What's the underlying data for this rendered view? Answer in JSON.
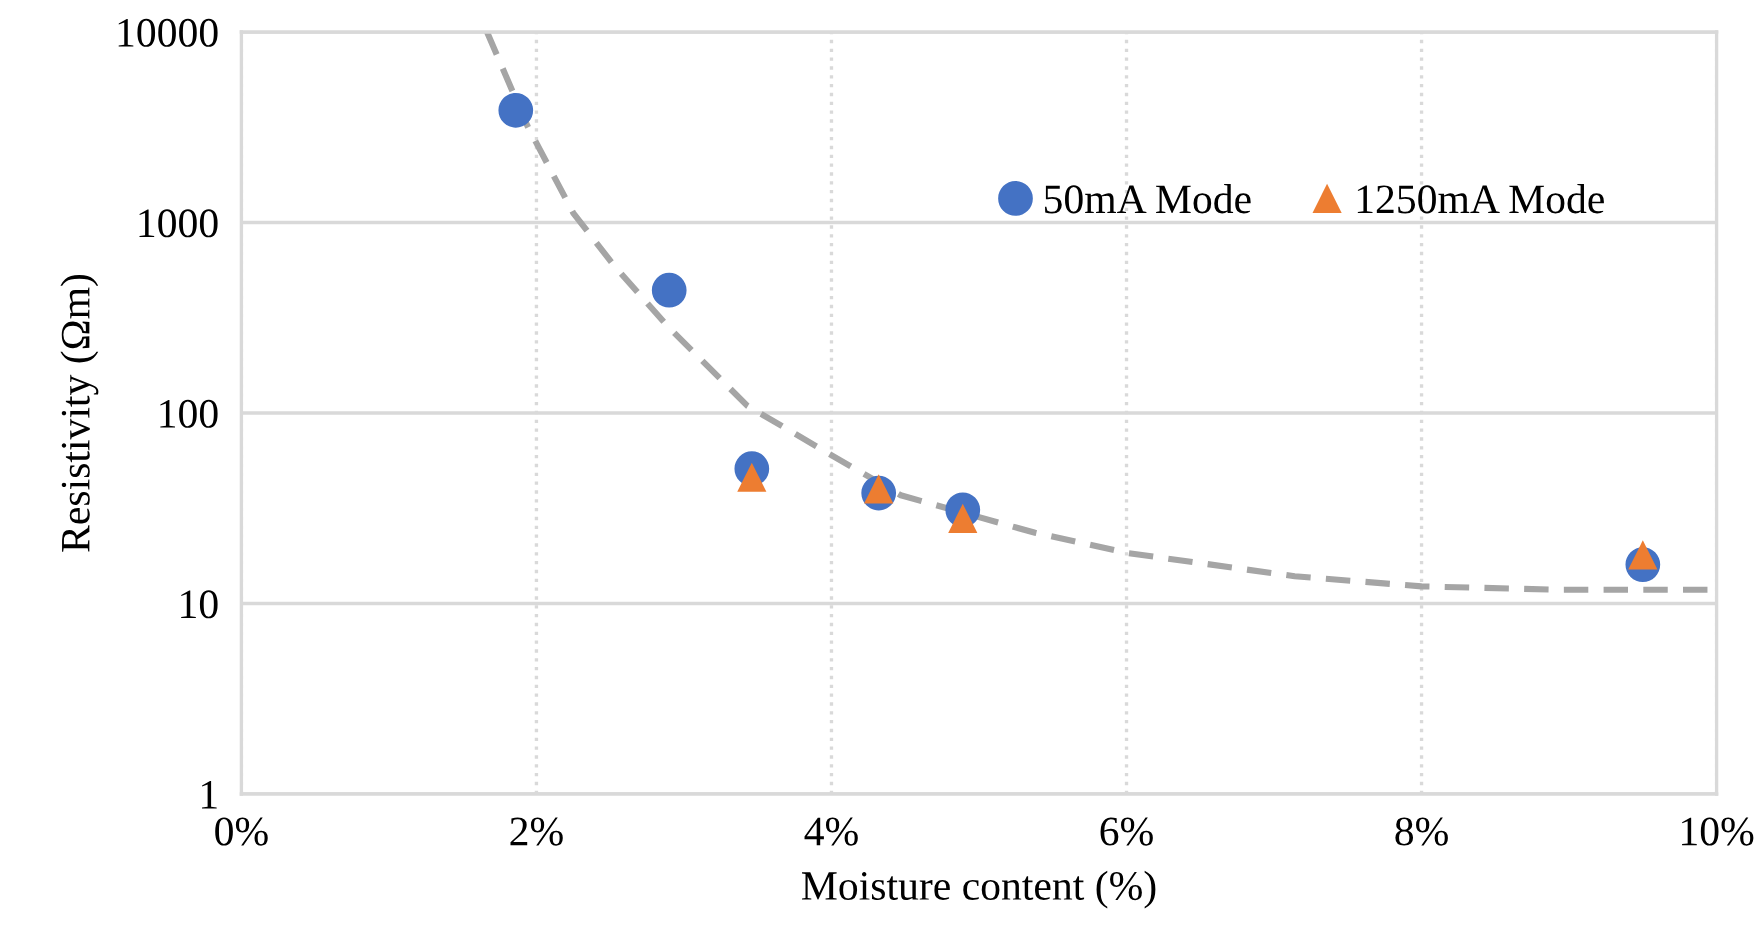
{
  "chart_data": {
    "type": "scatter",
    "xlabel": "Moisture content (%)",
    "ylabel": "Resistivity (Ωm)",
    "log": "y",
    "grid": true,
    "legend": "top right",
    "xlim": [
      0,
      10
    ],
    "ylim": [
      1,
      10000
    ],
    "xticks": [
      {
        "value": 0,
        "label": "0%"
      },
      {
        "value": 2,
        "label": "2%"
      },
      {
        "value": 4,
        "label": "4%"
      },
      {
        "value": 6,
        "label": "6%"
      },
      {
        "value": 8,
        "label": "8%"
      },
      {
        "value": 10,
        "label": "10%"
      }
    ],
    "yticks": [
      1,
      10,
      100,
      1000,
      10000
    ],
    "series": [
      {
        "type": "line",
        "line_style": "dashed",
        "marker": "none",
        "color": "#a5a5a5",
        "x": [
          1.665,
          1.94,
          2.25,
          2.53,
          2.89,
          3.43,
          3.97,
          4.47,
          5.38,
          6.01,
          7.14,
          8.0,
          8.95,
          10.0
        ],
        "values": [
          10000,
          3200,
          1120,
          589,
          285,
          109,
          62,
          37,
          23.5,
          18.4,
          13.9,
          12.3,
          11.8,
          11.8
        ]
      },
      {
        "name": "50mA Mode",
        "marker": "circle",
        "color": "#4472c4",
        "x": [
          1.86,
          2.9,
          3.46,
          4.32,
          4.89,
          9.5
        ],
        "values": [
          3880,
          441,
          51,
          38,
          31,
          16
        ]
      },
      {
        "name": "1250mA Mode",
        "marker": "triangle",
        "color": "#ed7d31",
        "x": [
          3.46,
          4.32,
          4.89,
          9.5
        ],
        "values": [
          46,
          40,
          28,
          18
        ]
      }
    ]
  }
}
